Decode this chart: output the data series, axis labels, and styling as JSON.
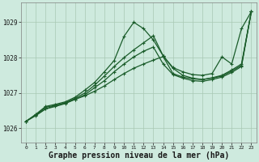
{
  "bg_color": "#ceeade",
  "grid_color": "#a8c8b4",
  "line_color": "#1a5c2a",
  "marker_color": "#1a5c2a",
  "xlabel": "Graphe pression niveau de la mer (hPa)",
  "xlabel_fontsize": 7,
  "xlim": [
    -0.5,
    23.5
  ],
  "ylim": [
    1025.6,
    1029.55
  ],
  "yticks": [
    1026,
    1027,
    1028,
    1029
  ],
  "xticks": [
    0,
    1,
    2,
    3,
    4,
    5,
    6,
    7,
    8,
    9,
    10,
    11,
    12,
    13,
    14,
    15,
    16,
    17,
    18,
    19,
    20,
    21,
    22,
    23
  ],
  "series": [
    {
      "x": [
        0,
        1,
        2,
        3,
        4,
        5,
        6,
        7,
        8,
        9,
        10,
        11,
        12,
        13,
        14,
        15,
        16,
        17,
        18,
        19,
        20,
        21,
        22,
        23
      ],
      "y": [
        1026.2,
        1026.38,
        1026.55,
        1026.65,
        1026.72,
        1026.82,
        1026.92,
        1027.05,
        1027.2,
        1027.38,
        1027.55,
        1027.7,
        1027.82,
        1027.93,
        1028.03,
        1027.55,
        1027.45,
        1027.4,
        1027.38,
        1027.42,
        1027.48,
        1027.62,
        1027.78,
        1029.3
      ],
      "linewidth": 0.9,
      "markersize": 2.5
    },
    {
      "x": [
        0,
        1,
        2,
        3,
        4,
        5,
        6,
        7,
        8,
        9,
        10,
        11,
        12,
        13,
        14,
        15,
        16,
        17,
        18,
        19,
        20,
        21,
        22,
        23
      ],
      "y": [
        1026.2,
        1026.4,
        1026.62,
        1026.68,
        1026.75,
        1026.88,
        1027.08,
        1027.3,
        1027.6,
        1027.92,
        1028.6,
        1029.0,
        1028.82,
        1028.5,
        1028.05,
        1027.72,
        1027.6,
        1027.52,
        1027.5,
        1027.55,
        1028.02,
        1027.82,
        1028.82,
        1029.3
      ],
      "linewidth": 0.9,
      "markersize": 2.5
    },
    {
      "x": [
        0,
        1,
        2,
        3,
        4,
        5,
        6,
        7,
        8,
        9,
        10,
        11,
        12,
        13,
        14,
        15,
        16,
        17,
        18,
        19,
        20,
        21,
        22,
        23
      ],
      "y": [
        1026.2,
        1026.38,
        1026.6,
        1026.65,
        1026.72,
        1026.85,
        1027.0,
        1027.22,
        1027.48,
        1027.75,
        1028.0,
        1028.22,
        1028.42,
        1028.62,
        1028.05,
        1027.7,
        1027.5,
        1027.42,
        1027.38,
        1027.43,
        1027.5,
        1027.65,
        1027.82,
        1029.3
      ],
      "linewidth": 0.9,
      "markersize": 2.5
    },
    {
      "x": [
        0,
        1,
        2,
        3,
        4,
        5,
        6,
        7,
        8,
        9,
        10,
        11,
        12,
        13,
        14,
        15,
        16,
        17,
        18,
        19,
        20,
        21,
        22,
        23
      ],
      "y": [
        1026.2,
        1026.36,
        1026.55,
        1026.62,
        1026.7,
        1026.82,
        1026.95,
        1027.15,
        1027.35,
        1027.6,
        1027.82,
        1028.02,
        1028.18,
        1028.3,
        1027.82,
        1027.52,
        1027.42,
        1027.35,
        1027.33,
        1027.38,
        1027.45,
        1027.58,
        1027.75,
        1029.3
      ],
      "linewidth": 0.9,
      "markersize": 2.5
    }
  ]
}
